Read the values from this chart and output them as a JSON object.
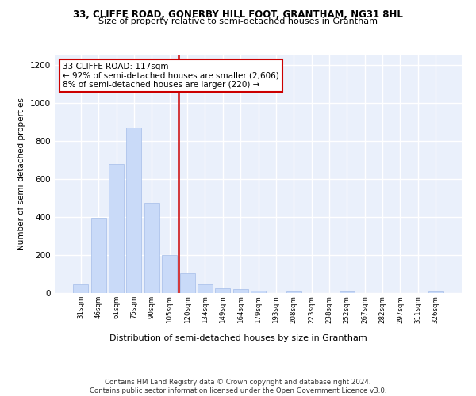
{
  "title1": "33, CLIFFE ROAD, GONERBY HILL FOOT, GRANTHAM, NG31 8HL",
  "title2": "Size of property relative to semi-detached houses in Grantham",
  "xlabel": "Distribution of semi-detached houses by size in Grantham",
  "ylabel": "Number of semi-detached properties",
  "categories": [
    "31sqm",
    "46sqm",
    "61sqm",
    "75sqm",
    "90sqm",
    "105sqm",
    "120sqm",
    "134sqm",
    "149sqm",
    "164sqm",
    "179sqm",
    "193sqm",
    "208sqm",
    "223sqm",
    "238sqm",
    "252sqm",
    "267sqm",
    "282sqm",
    "297sqm",
    "311sqm",
    "326sqm"
  ],
  "values": [
    45,
    395,
    680,
    870,
    475,
    200,
    105,
    45,
    25,
    20,
    12,
    0,
    10,
    0,
    0,
    10,
    0,
    0,
    0,
    0,
    10
  ],
  "bar_color": "#c9daf8",
  "bar_edge_color": "#a4bde8",
  "vline_color": "#cc0000",
  "annotation_text": "33 CLIFFE ROAD: 117sqm\n← 92% of semi-detached houses are smaller (2,606)\n8% of semi-detached houses are larger (220) →",
  "annotation_box_color": "#ffffff",
  "annotation_box_edge": "#cc0000",
  "footer": "Contains HM Land Registry data © Crown copyright and database right 2024.\nContains public sector information licensed under the Open Government Licence v3.0.",
  "ylim": [
    0,
    1250
  ],
  "yticks": [
    0,
    200,
    400,
    600,
    800,
    1000,
    1200
  ],
  "bg_color": "#eaf0fb",
  "grid_color": "#ffffff"
}
